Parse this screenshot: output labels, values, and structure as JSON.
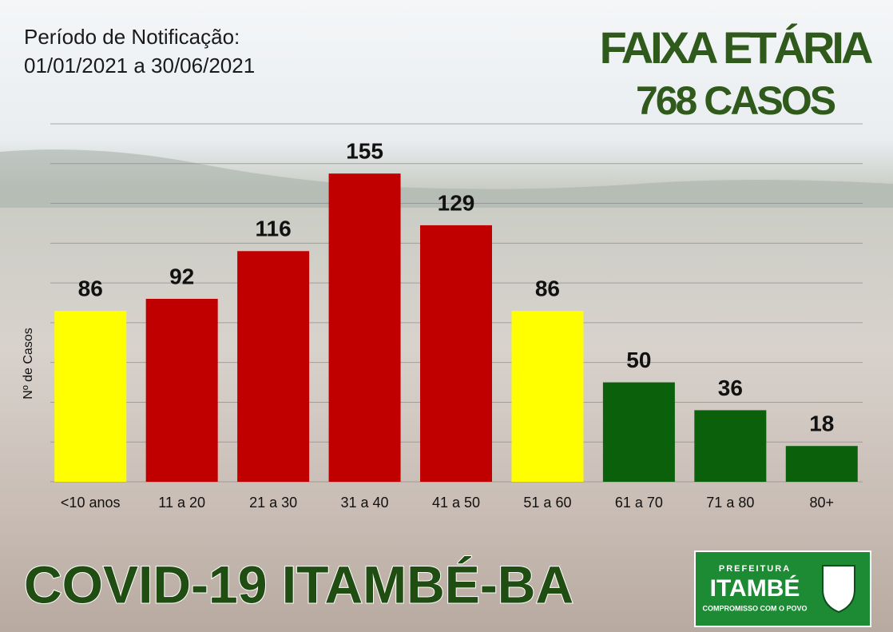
{
  "chart_data": {
    "type": "bar",
    "title": "FAIXA ETÁRIA",
    "subtitle": "768 CASOS",
    "period_label": "Período de Notificação:",
    "period": "01/01/2021 a 30/06/2021",
    "y_label": "Nº de Casos",
    "categories": [
      "<10 anos",
      "11 a 20",
      "21 a 30",
      "31 a 40",
      "41 a 50",
      "51 a 60",
      "61 a 70",
      "71 a 80",
      "80+"
    ],
    "values": [
      86,
      92,
      116,
      155,
      129,
      86,
      50,
      36,
      18
    ],
    "colors": [
      "#ffff00",
      "#c00000",
      "#c00000",
      "#c00000",
      "#c00000",
      "#ffff00",
      "#0b600b",
      "#0b600b",
      "#0b600b"
    ],
    "ylim": [
      0,
      180
    ],
    "yticks": [
      0,
      20,
      40,
      60,
      80,
      100,
      120,
      140,
      160,
      180
    ],
    "grid": true
  },
  "footer": {
    "title": "COVID-19  ITAMBÉ-BA"
  },
  "logo": {
    "top": "PREFEITURA",
    "name": "ITAMBÉ",
    "motto": "COMPROMISSO COM O POVO"
  }
}
